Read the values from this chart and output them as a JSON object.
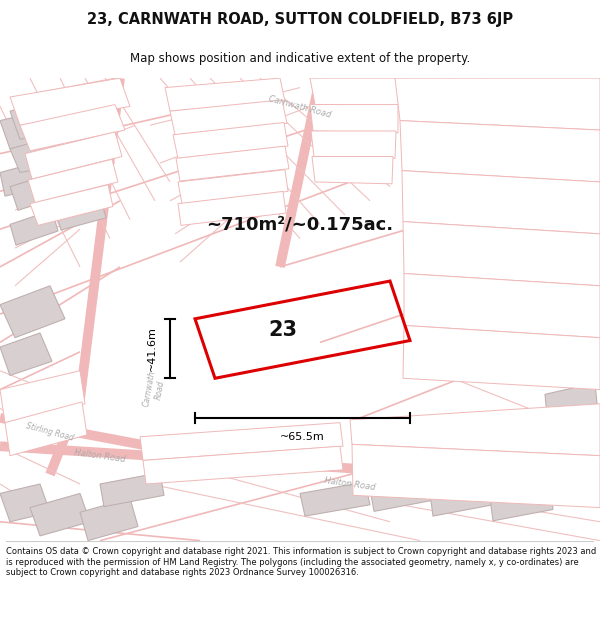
{
  "title": "23, CARNWATH ROAD, SUTTON COLDFIELD, B73 6JP",
  "subtitle": "Map shows position and indicative extent of the property.",
  "area_label": "~710m²/~0.175ac.",
  "property_number": "23",
  "dim_width": "~65.5m",
  "dim_height": "~41.6m",
  "footer_text": "Contains OS data © Crown copyright and database right 2021. This information is subject to Crown copyright and database rights 2023 and is reproduced with the permission of HM Land Registry. The polygons (including the associated geometry, namely x, y co-ordinates) are subject to Crown copyright and database rights 2023 Ordnance Survey 100026316.",
  "map_bg": "#ffffff",
  "road_line_color": "#f0b8b8",
  "building_gray_fill": "#d8d0d0",
  "building_gray_edge": "#c0b0b0",
  "building_white_fill": "#ffffff",
  "building_white_edge": "#f0b8b8",
  "property_outline": "#dd0000",
  "title_color": "#111111",
  "footer_color": "#111111",
  "road_label_color": "#aaaaaa",
  "carnwath_road_label": "Carnwath Road",
  "halton_road_label": "Halton Road",
  "stirling_road_label": "Stirling Road"
}
